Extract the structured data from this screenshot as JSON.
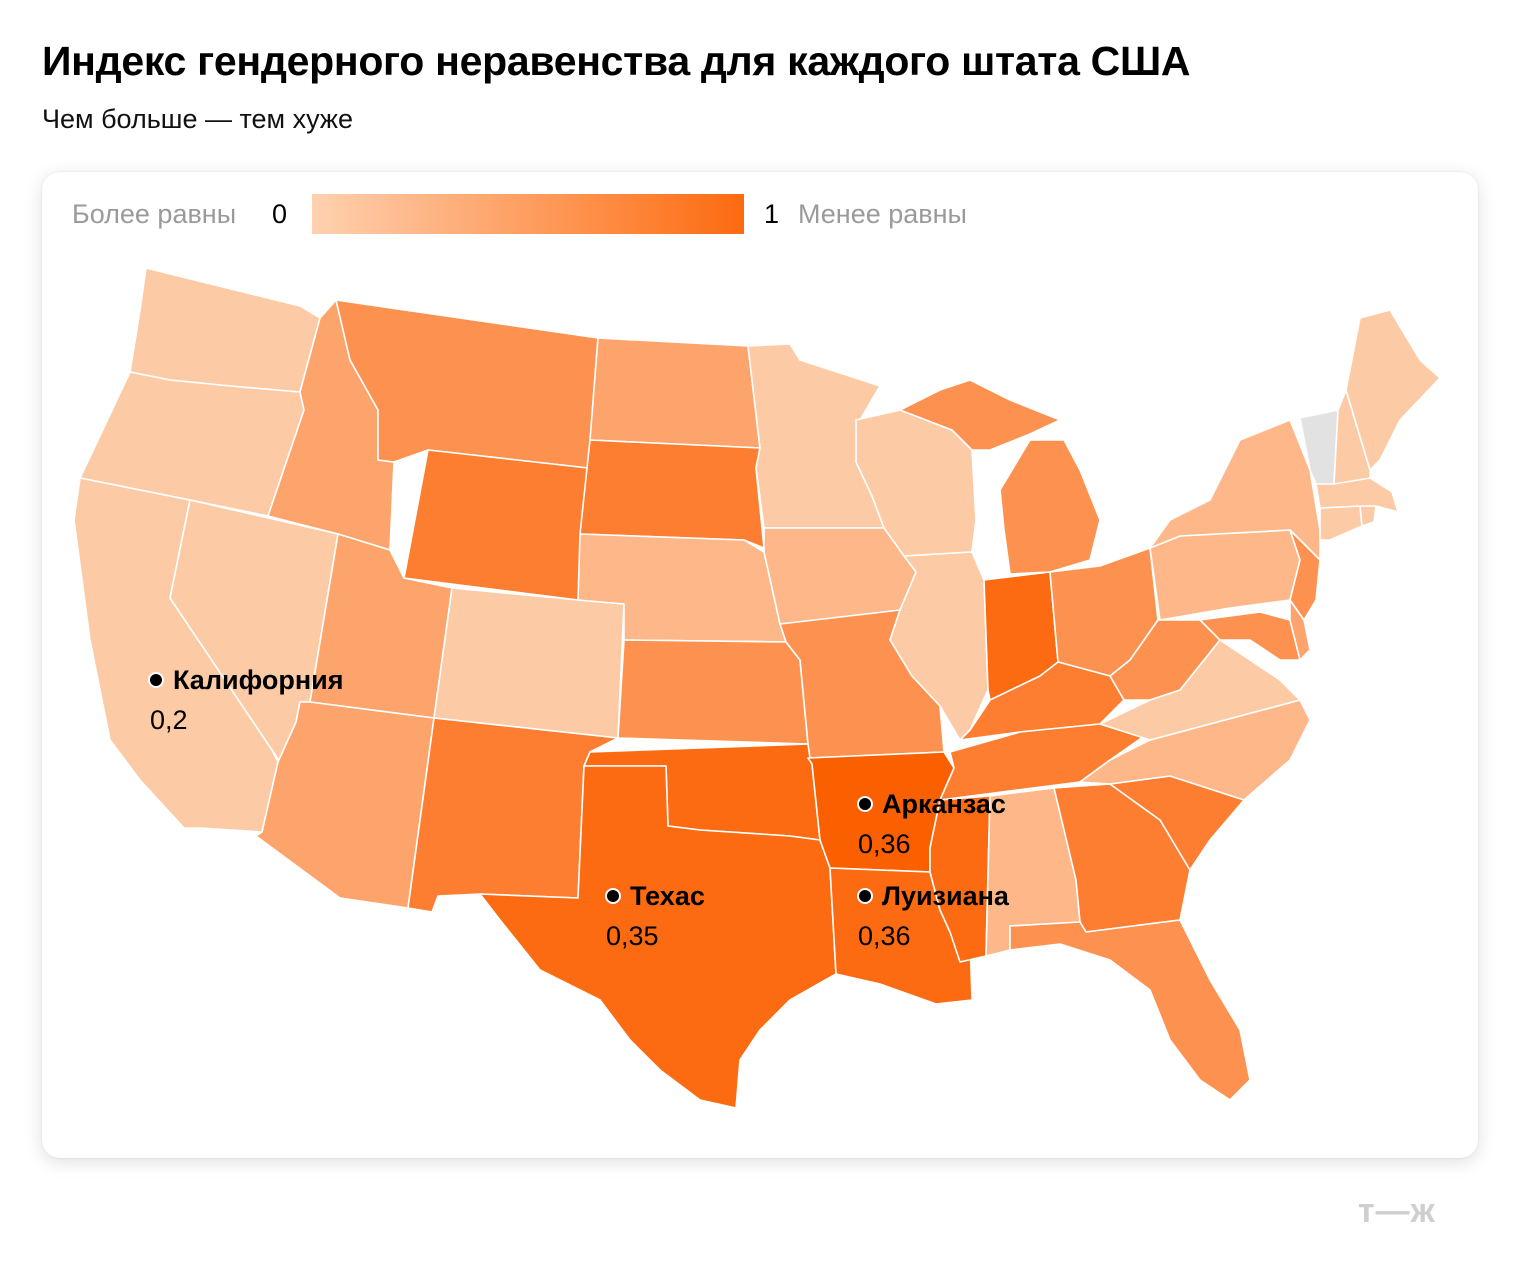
{
  "title": "Индекс гендерного неравенства для каждого штата США",
  "subtitle": "Чем больше — тем хуже",
  "legend": {
    "left_label": "Более равны",
    "min": "0",
    "max": "1",
    "right_label": "Менее равны",
    "color_min": "#ffd1b0",
    "color_max": "#fd6a0f"
  },
  "colors": {
    "l1": "#fdcaa6",
    "l2": "#fdb789",
    "l3": "#fda46c",
    "l4": "#fd9250",
    "l5": "#fd7d31",
    "l6": "#fc6a12",
    "l7": "#fb6000",
    "nodata": "#e2e2e2"
  },
  "labels": [
    {
      "name": "Калифорния",
      "value": "0,2"
    },
    {
      "name": "Арканзас",
      "value": "0,36"
    },
    {
      "name": "Техас",
      "value": "0,35"
    },
    {
      "name": "Луизиана",
      "value": "0,36"
    }
  ],
  "logo": "т—ж"
}
